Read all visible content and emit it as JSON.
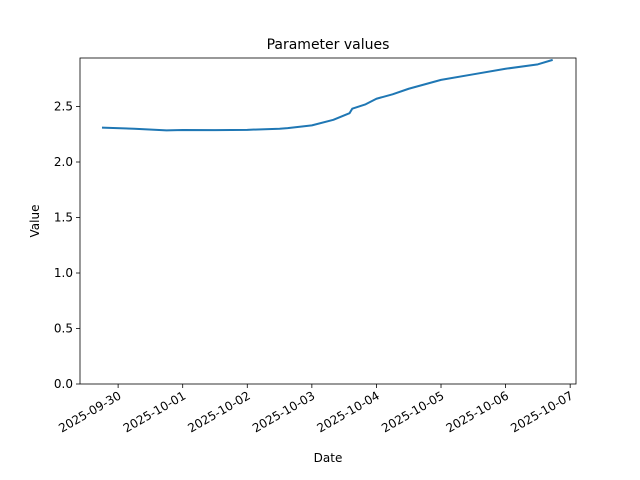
{
  "chart_data": {
    "type": "line",
    "title": "Parameter values",
    "x_label": "Date",
    "y_label": "Value",
    "x": [
      "2025-09-29T18:00",
      "2025-09-30T06:00",
      "2025-09-30T18:00",
      "2025-10-01T00:00",
      "2025-10-01T12:00",
      "2025-10-02T00:00",
      "2025-10-02T12:00",
      "2025-10-02T15:00",
      "2025-10-03T00:00",
      "2025-10-03T08:00",
      "2025-10-03T14:00",
      "2025-10-03T15:00",
      "2025-10-03T20:00",
      "2025-10-04T00:00",
      "2025-10-04T06:00",
      "2025-10-04T12:00",
      "2025-10-05T00:00",
      "2025-10-05T12:00",
      "2025-10-06T00:00",
      "2025-10-06T12:00",
      "2025-10-06T17:30"
    ],
    "series": [
      {
        "name": "Value",
        "color": "#1f77b4",
        "values": [
          2.31,
          2.3,
          2.285,
          2.288,
          2.287,
          2.29,
          2.3,
          2.305,
          2.33,
          2.38,
          2.44,
          2.48,
          2.52,
          2.57,
          2.61,
          2.66,
          2.74,
          2.79,
          2.84,
          2.88,
          2.92
        ]
      }
    ],
    "xlim": [
      "2025-09-29T09:50",
      "2025-10-07T02:10"
    ],
    "xticks": [
      "2025-09-30",
      "2025-10-01",
      "2025-10-02",
      "2025-10-03",
      "2025-10-04",
      "2025-10-05",
      "2025-10-06",
      "2025-10-07"
    ],
    "ylim": [
      0,
      2.937
    ],
    "yticks": [
      {
        "value": 0,
        "label": "0.0"
      },
      0.5,
      {
        "value": 1,
        "label": "1.0"
      },
      1.5,
      {
        "value": 2,
        "label": "2.0"
      },
      2.5
    ],
    "grid": false
  }
}
